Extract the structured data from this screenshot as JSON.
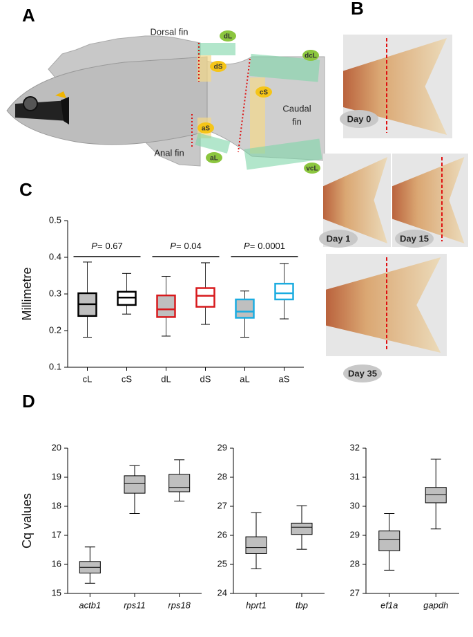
{
  "panel_labels": [
    "A",
    "B",
    "C",
    "D"
  ],
  "fish_labels": {
    "dorsal": "Dorsal fin",
    "caudal": [
      "Caudal",
      "fin"
    ],
    "anal": "Anal fin",
    "tags": [
      "dL",
      "dS",
      "dcL",
      "cS",
      "aS",
      "aL",
      "vcL"
    ]
  },
  "day_labels": [
    "Day 0",
    "Day 1",
    "Day 15",
    "Day 35"
  ],
  "chart_data": [
    {
      "type": "box",
      "ylabel": "Millimetre",
      "categories": [
        "cL",
        "cS",
        "dL",
        "dS",
        "aL",
        "aS"
      ],
      "colors": [
        "#000000",
        "#000000",
        "#d7191c",
        "#d7191c",
        "#1aace0",
        "#1aace0"
      ],
      "fills": [
        "#bfbfbf",
        "#ffffff",
        "#bfbfbf",
        "#ffffff",
        "#bfbfbf",
        "#ffffff"
      ],
      "boxes": [
        {
          "min": 0.182,
          "q1": 0.24,
          "median": 0.272,
          "q3": 0.302,
          "max": 0.387
        },
        {
          "min": 0.245,
          "q1": 0.27,
          "median": 0.29,
          "q3": 0.306,
          "max": 0.356
        },
        {
          "min": 0.185,
          "q1": 0.237,
          "median": 0.258,
          "q3": 0.296,
          "max": 0.348
        },
        {
          "min": 0.217,
          "q1": 0.265,
          "median": 0.295,
          "q3": 0.316,
          "max": 0.385
        },
        {
          "min": 0.182,
          "q1": 0.235,
          "median": 0.252,
          "q3": 0.285,
          "max": 0.308
        },
        {
          "min": 0.232,
          "q1": 0.285,
          "median": 0.302,
          "q3": 0.328,
          "max": 0.383
        }
      ],
      "annotations": [
        {
          "prefix": "P=",
          "value": 0.67
        },
        {
          "prefix": "P=",
          "value": 0.04
        },
        {
          "prefix": "P=",
          "value": 0.0001
        }
      ],
      "ylim": [
        0.1,
        0.5
      ],
      "yticks": [
        0.1,
        0.2,
        0.3,
        0.4,
        0.5
      ]
    },
    {
      "type": "box",
      "ylabel": "Cq values",
      "categories": [
        "actb1",
        "rps11",
        "rps18"
      ],
      "colors": [
        "#000000",
        "#000000",
        "#000000"
      ],
      "fills": [
        "#bfbfbf",
        "#bfbfbf",
        "#bfbfbf"
      ],
      "boxes": [
        {
          "min": 15.35,
          "q1": 15.7,
          "median": 15.9,
          "q3": 16.1,
          "max": 16.6
        },
        {
          "min": 17.75,
          "q1": 18.45,
          "median": 18.78,
          "q3": 19.05,
          "max": 19.4
        },
        {
          "min": 18.18,
          "q1": 18.5,
          "median": 18.65,
          "q3": 19.1,
          "max": 19.6
        }
      ],
      "ylim": [
        15,
        20
      ],
      "yticks": [
        15,
        16,
        17,
        18,
        19,
        20
      ]
    },
    {
      "type": "box",
      "categories": [
        "hprt1",
        "tbp"
      ],
      "colors": [
        "#000000",
        "#000000"
      ],
      "fills": [
        "#bfbfbf",
        "#bfbfbf"
      ],
      "boxes": [
        {
          "min": 24.85,
          "q1": 25.37,
          "median": 25.58,
          "q3": 25.95,
          "max": 26.78
        },
        {
          "min": 25.52,
          "q1": 26.03,
          "median": 26.28,
          "q3": 26.42,
          "max": 27.02
        }
      ],
      "ylim": [
        24,
        29
      ],
      "yticks": [
        24,
        25,
        26,
        27,
        28,
        29
      ]
    },
    {
      "type": "box",
      "categories": [
        "ef1a",
        "gapdh"
      ],
      "colors": [
        "#000000",
        "#000000"
      ],
      "fills": [
        "#bfbfbf",
        "#bfbfbf"
      ],
      "boxes": [
        {
          "min": 27.8,
          "q1": 28.47,
          "median": 28.85,
          "q3": 29.15,
          "max": 29.75
        },
        {
          "min": 29.22,
          "q1": 30.12,
          "median": 30.4,
          "q3": 30.65,
          "max": 31.62
        }
      ],
      "ylim": [
        27,
        32
      ],
      "yticks": [
        27,
        28,
        29,
        30,
        31,
        32
      ]
    }
  ]
}
